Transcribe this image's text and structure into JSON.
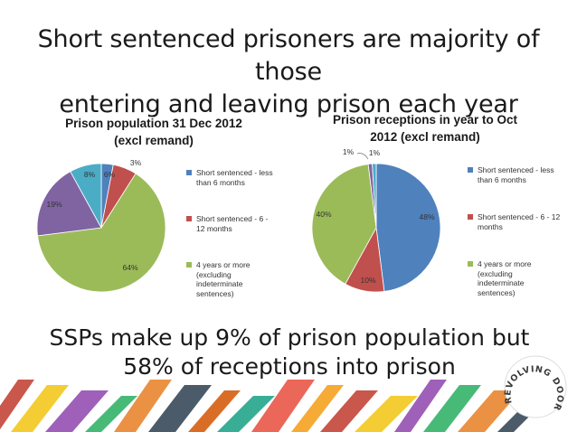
{
  "slide": {
    "title_line1": "Short sentenced prisoners are majority of those",
    "title_line2": "entering and leaving prison each year",
    "takeaway_line1": "SSPs make up 9% of prison population but",
    "takeaway_line2": "58% of receptions into prison"
  },
  "logo": {
    "text": "REVOLVING DOORS AGENCY"
  },
  "chart_data": [
    {
      "type": "pie",
      "title_line1": "Prison population 31 Dec 2012",
      "title_line2": "(excl remand)",
      "legend_position": "right",
      "slices": [
        {
          "label_line1": "Short sentenced - less",
          "label_line2": "than 6 months",
          "label_line3": "",
          "value": 3,
          "color": "#4f81bd"
        },
        {
          "label_line1": "Short sentenced - 6 -",
          "label_line2": "12 months",
          "label_line3": "",
          "value": 6,
          "color": "#c0504d"
        },
        {
          "label_line1": "4 years or more",
          "label_line2": "(excluding",
          "label_line3": "indeterminate",
          "label_line4": "sentences)",
          "value": 64,
          "color": "#9bbb59"
        },
        {
          "label_line1": "",
          "value": 19,
          "color": "#8064a2"
        },
        {
          "label_line1": "",
          "value": 8,
          "color": "#4bacc6"
        }
      ],
      "data_labels": [
        "3%",
        "6%",
        "64%",
        "19%",
        "8%"
      ]
    },
    {
      "type": "pie",
      "title_line1": "Prison receptions in year to Oct",
      "title_line2": "2012 (excl remand)",
      "legend_position": "right",
      "slices": [
        {
          "label_line1": "Short sentenced - less",
          "label_line2": "than 6 months",
          "value": 48,
          "color": "#4f81bd"
        },
        {
          "label_line1": "Short sentenced - 6 - 12",
          "label_line2": "months",
          "value": 10,
          "color": "#c0504d"
        },
        {
          "label_line1": "4 years or more",
          "label_line2": "(excluding",
          "label_line3": "indeterminate",
          "label_line4": "sentences)",
          "value": 40,
          "color": "#9bbb59"
        },
        {
          "label_line1": "",
          "value": 1,
          "color": "#8064a2"
        },
        {
          "label_line1": "",
          "value": 1,
          "color": "#4bacc6"
        }
      ],
      "data_labels": [
        "48%",
        "10%",
        "40%",
        "1%",
        "1%"
      ]
    }
  ]
}
